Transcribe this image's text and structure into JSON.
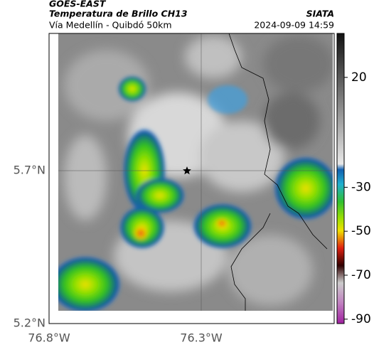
{
  "header": {
    "source": "GOES-EAST",
    "title": "Temperatura de Brillo CH13",
    "agency": "SIATA",
    "location": "Vía Medellín - Quibdó 50km",
    "datetime": "2024-09-09 14:59"
  },
  "map": {
    "lat_labels": [
      "5.7°N",
      "5.2°N"
    ],
    "lon_labels": [
      "76.8°W",
      "76.3°W"
    ]
  },
  "colorbar": {
    "lim": [
      40,
      -92
    ],
    "ticks": [
      20,
      -30,
      -50,
      -70,
      -90
    ]
  }
}
